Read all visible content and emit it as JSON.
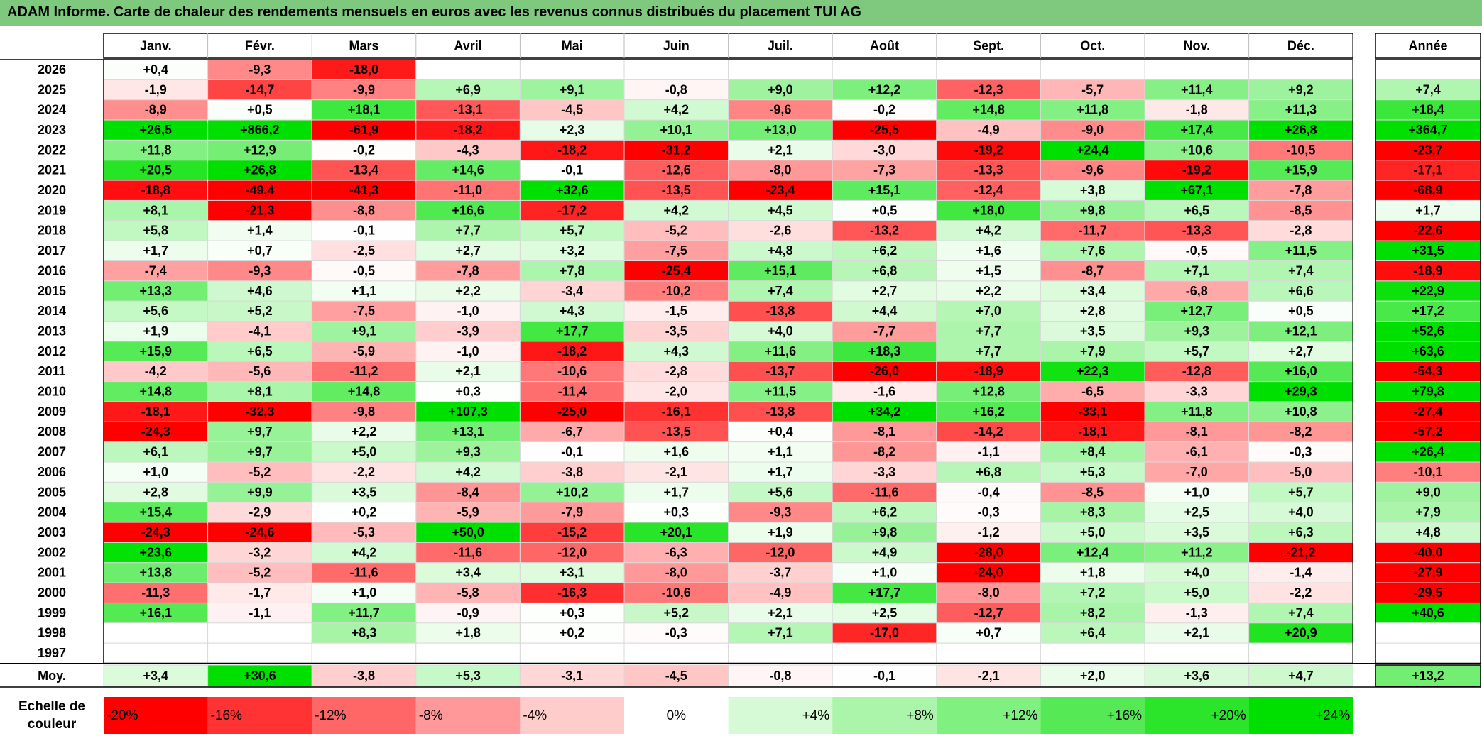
{
  "title": "ADAM Informe. Carte de chaleur des rendements mensuels en euros avec les revenus connus distribués du placement TUI AG",
  "chart_data": {
    "type": "heatmap",
    "columns": [
      "Janv.",
      "Févr.",
      "Mars",
      "Avril",
      "Mai",
      "Juin",
      "Juil.",
      "Août",
      "Sept.",
      "Oct.",
      "Nov.",
      "Déc."
    ],
    "annual_header": "Année",
    "rows": [
      {
        "year": "2026",
        "values": [
          "+0,4",
          "-9,3",
          "-18,0",
          "",
          "",
          "",
          "",
          "",
          "",
          "",
          "",
          ""
        ],
        "annual": ""
      },
      {
        "year": "2025",
        "values": [
          "-1,9",
          "-14,7",
          "-9,9",
          "+6,9",
          "+9,1",
          "-0,8",
          "+9,0",
          "+12,2",
          "-12,3",
          "-5,7",
          "+11,4",
          "+9,2"
        ],
        "annual": "+7,4"
      },
      {
        "year": "2024",
        "values": [
          "-8,9",
          "+0,5",
          "+18,1",
          "-13,1",
          "-4,5",
          "+4,2",
          "-9,6",
          "-0,2",
          "+14,8",
          "+11,8",
          "-1,8",
          "+11,3"
        ],
        "annual": "+18,4"
      },
      {
        "year": "2023",
        "values": [
          "+26,5",
          "+866,2",
          "-61,9",
          "-18,2",
          "+2,3",
          "+10,1",
          "+13,0",
          "-25,5",
          "-4,9",
          "-9,0",
          "+17,4",
          "+26,8"
        ],
        "annual": "+364,7"
      },
      {
        "year": "2022",
        "values": [
          "+11,8",
          "+12,9",
          "-0,2",
          "-4,3",
          "-18,2",
          "-31,2",
          "+2,1",
          "-3,0",
          "-19,2",
          "+24,4",
          "+10,6",
          "-10,5"
        ],
        "annual": "-23,7"
      },
      {
        "year": "2021",
        "values": [
          "+20,5",
          "+26,8",
          "-13,4",
          "+14,6",
          "-0,1",
          "-12,6",
          "-8,0",
          "-7,3",
          "-13,3",
          "-9,6",
          "-19,2",
          "+15,9"
        ],
        "annual": "-17,1"
      },
      {
        "year": "2020",
        "values": [
          "-18,8",
          "-49,4",
          "-41,3",
          "-11,0",
          "+32,6",
          "-13,5",
          "-23,4",
          "+15,1",
          "-12,4",
          "+3,8",
          "+67,1",
          "-7,8"
        ],
        "annual": "-68,9"
      },
      {
        "year": "2019",
        "values": [
          "+8,1",
          "-21,3",
          "-8,8",
          "+16,6",
          "-17,2",
          "+4,2",
          "+4,5",
          "+0,5",
          "+18,0",
          "+9,8",
          "+6,5",
          "-8,5"
        ],
        "annual": "+1,7"
      },
      {
        "year": "2018",
        "values": [
          "+5,8",
          "+1,4",
          "-0,1",
          "+7,7",
          "+5,7",
          "-5,2",
          "-2,6",
          "-13,2",
          "+4,2",
          "-11,7",
          "-13,3",
          "-2,8"
        ],
        "annual": "-22,6"
      },
      {
        "year": "2017",
        "values": [
          "+1,7",
          "+0,7",
          "-2,5",
          "+2,7",
          "+3,2",
          "-7,5",
          "+4,8",
          "+6,2",
          "+1,6",
          "+7,6",
          "-0,5",
          "+11,5"
        ],
        "annual": "+31,5"
      },
      {
        "year": "2016",
        "values": [
          "-7,4",
          "-9,3",
          "-0,5",
          "-7,8",
          "+7,8",
          "-25,4",
          "+15,1",
          "+6,8",
          "+1,5",
          "-8,7",
          "+7,1",
          "+7,4"
        ],
        "annual": "-18,9"
      },
      {
        "year": "2015",
        "values": [
          "+13,3",
          "+4,6",
          "+1,1",
          "+2,2",
          "-3,4",
          "-10,2",
          "+7,4",
          "+2,7",
          "+2,2",
          "+3,4",
          "-6,8",
          "+6,6"
        ],
        "annual": "+22,9"
      },
      {
        "year": "2014",
        "values": [
          "+5,6",
          "+5,2",
          "-7,5",
          "-1,0",
          "+4,3",
          "-1,5",
          "-13,8",
          "+4,4",
          "+7,0",
          "+2,8",
          "+12,7",
          "+0,5"
        ],
        "annual": "+17,2"
      },
      {
        "year": "2013",
        "values": [
          "+1,9",
          "-4,1",
          "+9,1",
          "-3,9",
          "+17,7",
          "-3,5",
          "+4,0",
          "-7,7",
          "+7,7",
          "+3,5",
          "+9,3",
          "+12,1"
        ],
        "annual": "+52,6"
      },
      {
        "year": "2012",
        "values": [
          "+15,9",
          "+6,5",
          "-5,9",
          "-1,0",
          "-18,2",
          "+4,3",
          "+11,6",
          "+18,3",
          "+7,7",
          "+7,9",
          "+5,7",
          "+2,7"
        ],
        "annual": "+63,6"
      },
      {
        "year": "2011",
        "values": [
          "-4,2",
          "-5,6",
          "-11,2",
          "+2,1",
          "-10,6",
          "-2,8",
          "-13,7",
          "-26,0",
          "-18,9",
          "+22,3",
          "-12,8",
          "+16,0"
        ],
        "annual": "-54,3"
      },
      {
        "year": "2010",
        "values": [
          "+14,8",
          "+8,1",
          "+14,8",
          "+0,3",
          "-11,4",
          "-2,0",
          "+11,5",
          "-1,6",
          "+12,8",
          "-6,5",
          "-3,3",
          "+29,3"
        ],
        "annual": "+79,8"
      },
      {
        "year": "2009",
        "values": [
          "-18,1",
          "-32,3",
          "-9,8",
          "+107,3",
          "-25,0",
          "-16,1",
          "-13,8",
          "+34,2",
          "+16,2",
          "-33,1",
          "+11,8",
          "+10,8"
        ],
        "annual": "-27,4"
      },
      {
        "year": "2008",
        "values": [
          "-24,3",
          "+9,7",
          "+2,2",
          "+13,1",
          "-6,7",
          "-13,5",
          "+0,4",
          "-8,1",
          "-14,2",
          "-18,1",
          "-8,1",
          "-8,2"
        ],
        "annual": "-57,2"
      },
      {
        "year": "2007",
        "values": [
          "+6,1",
          "+9,7",
          "+5,0",
          "+9,3",
          "-0,1",
          "+1,6",
          "+1,1",
          "-8,2",
          "-1,1",
          "+8,4",
          "-6,1",
          "-0,3"
        ],
        "annual": "+26,4"
      },
      {
        "year": "2006",
        "values": [
          "+1,0",
          "-5,2",
          "-2,2",
          "+4,2",
          "-3,8",
          "-2,1",
          "+1,7",
          "-3,3",
          "+6,8",
          "+5,3",
          "-7,0",
          "-5,0"
        ],
        "annual": "-10,1"
      },
      {
        "year": "2005",
        "values": [
          "+2,8",
          "+9,9",
          "+3,5",
          "-8,4",
          "+10,2",
          "+1,7",
          "+5,6",
          "-11,6",
          "-0,4",
          "-8,5",
          "+1,0",
          "+5,7"
        ],
        "annual": "+9,0"
      },
      {
        "year": "2004",
        "values": [
          "+15,4",
          "-2,9",
          "+0,2",
          "-5,9",
          "-7,9",
          "+0,3",
          "-9,3",
          "+6,2",
          "-0,3",
          "+8,3",
          "+2,5",
          "+4,0"
        ],
        "annual": "+7,9"
      },
      {
        "year": "2003",
        "values": [
          "-24,3",
          "-24,6",
          "-5,3",
          "+50,0",
          "-15,2",
          "+20,1",
          "+1,9",
          "+9,8",
          "-1,2",
          "+5,0",
          "+3,5",
          "+6,3"
        ],
        "annual": "+4,8"
      },
      {
        "year": "2002",
        "values": [
          "+23,6",
          "-3,2",
          "+4,2",
          "-11,6",
          "-12,0",
          "-6,3",
          "-12,0",
          "+4,9",
          "-28,0",
          "+12,4",
          "+11,2",
          "-21,2"
        ],
        "annual": "-40,0"
      },
      {
        "year": "2001",
        "values": [
          "+13,8",
          "-5,2",
          "-11,6",
          "+3,4",
          "+3,1",
          "-8,0",
          "-3,7",
          "+1,0",
          "-24,0",
          "+1,8",
          "+4,0",
          "-1,4"
        ],
        "annual": "-27,9"
      },
      {
        "year": "2000",
        "values": [
          "-11,3",
          "-1,7",
          "+1,0",
          "-5,8",
          "-16,3",
          "-10,6",
          "-4,9",
          "+17,7",
          "-8,0",
          "+7,2",
          "+5,0",
          "-2,2"
        ],
        "annual": "-29,5"
      },
      {
        "year": "1999",
        "values": [
          "+16,1",
          "-1,1",
          "+11,7",
          "-0,9",
          "+0,3",
          "+5,2",
          "+2,1",
          "+2,5",
          "-12,7",
          "+8,2",
          "-1,3",
          "+7,4"
        ],
        "annual": "+40,6"
      },
      {
        "year": "1998",
        "values": [
          "",
          "",
          "+8,3",
          "+1,8",
          "+0,2",
          "-0,3",
          "+7,1",
          "-17,0",
          "+0,7",
          "+6,4",
          "+2,1",
          "+20,9"
        ],
        "annual": ""
      },
      {
        "year": "1997",
        "values": [
          "",
          "",
          "",
          "",
          "",
          "",
          "",
          "",
          "",
          "",
          "",
          ""
        ],
        "annual": ""
      }
    ],
    "average": {
      "label": "Moy.",
      "values": [
        "+3,4",
        "+30,6",
        "-3,8",
        "+5,3",
        "-3,1",
        "-4,5",
        "-0,8",
        "-0,1",
        "-2,1",
        "+2,0",
        "+3,6",
        "+4,7"
      ],
      "annual": "+13,2"
    },
    "color_scale": {
      "label": [
        "Echelle de",
        "couleur"
      ],
      "steps": [
        "-20%",
        "-16%",
        "-12%",
        "-8%",
        "-4%",
        "0%",
        "+4%",
        "+8%",
        "+12%",
        "+16%",
        "+20%",
        "+24%"
      ],
      "negative_color": "#ff0000",
      "positive_color": "#00e000",
      "neutral_color": "#ffffff"
    }
  }
}
